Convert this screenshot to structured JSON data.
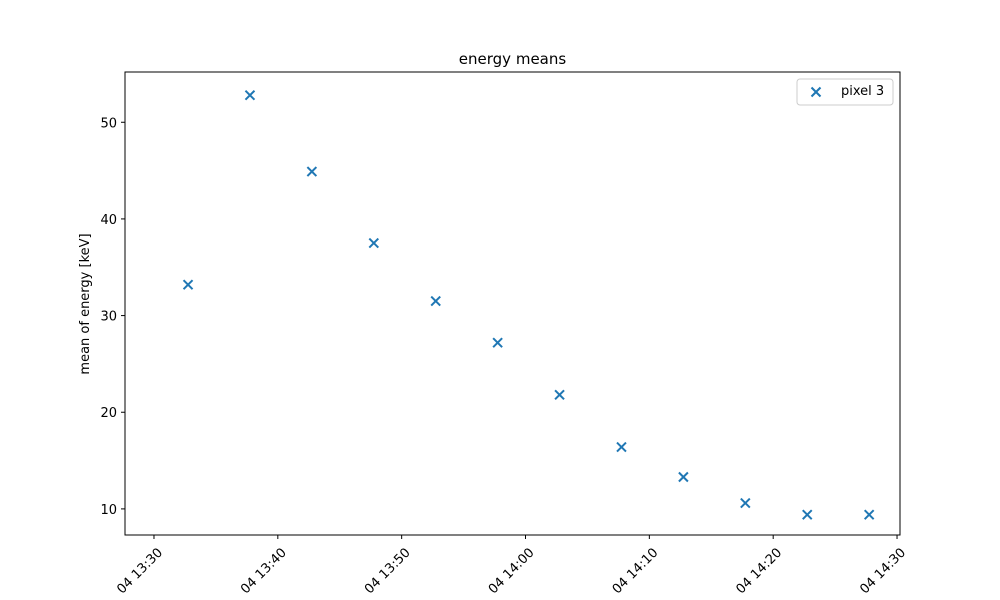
{
  "chart_data": {
    "type": "scatter",
    "title": "energy means",
    "xlabel": "",
    "ylabel": "mean of energy [keV]",
    "x_ticks": [
      "04 13:30",
      "04 13:40",
      "04 13:50",
      "04 14:00",
      "04 14:10",
      "04 14:20",
      "04 14:30"
    ],
    "y_ticks": [
      "10",
      "20",
      "30",
      "40",
      "50"
    ],
    "xlim": [
      "13:30",
      "14:30"
    ],
    "ylim": [
      7.3,
      55.2
    ],
    "grid": false,
    "legend_position": "upper right",
    "series": [
      {
        "name": "pixel 3",
        "marker": "x",
        "color": "#1f77b4",
        "x": [
          "13:32:45",
          "13:37:45",
          "13:42:45",
          "13:47:45",
          "13:52:45",
          "13:57:45",
          "14:02:45",
          "14:07:45",
          "14:12:45",
          "14:17:45",
          "14:22:45",
          "14:27:45"
        ],
        "y": [
          33.2,
          52.8,
          44.9,
          37.5,
          31.5,
          27.2,
          21.8,
          16.4,
          13.3,
          10.6,
          9.4,
          9.4
        ]
      }
    ]
  }
}
